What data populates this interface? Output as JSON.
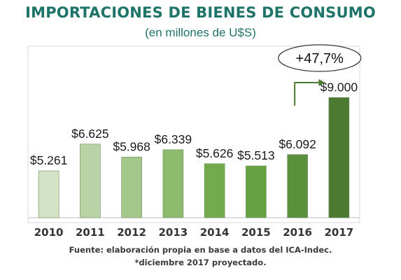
{
  "header": {
    "title": "IMPORTACIONES DE BIENES DE CONSUMO",
    "subtitle": "(en millones de U$S)"
  },
  "footer": {
    "source": "Fuente: elaboración propia en base a datos del ICA-Indec.",
    "note": "*diciembre 2017 proyectado."
  },
  "chart_data": {
    "type": "bar",
    "title": "IMPORTACIONES DE BIENES DE CONSUMO",
    "subtitle": "(en millones de U$S)",
    "categories": [
      "2010",
      "2011",
      "2012",
      "2013",
      "2014",
      "2015",
      "2016",
      "2017"
    ],
    "values": [
      5261,
      6625,
      5968,
      6339,
      5626,
      5513,
      6092,
      9000
    ],
    "data_labels": [
      "$5.261",
      "$6.625",
      "$5.968",
      "$6.339",
      "$5.626",
      "$5.513",
      "$6.092",
      "$9.000"
    ],
    "bar_colors": [
      "#d3e3c6",
      "#b8d3a5",
      "#a4c78c",
      "#8dbb6e",
      "#73ab4c",
      "#66a242",
      "#5a8f3b",
      "#4d7a31"
    ],
    "annotation": {
      "text": "+47,7%",
      "from_category": "2016",
      "to_category": "2017"
    },
    "xlabel": "",
    "ylabel": "",
    "grid": false,
    "legend": "none"
  }
}
